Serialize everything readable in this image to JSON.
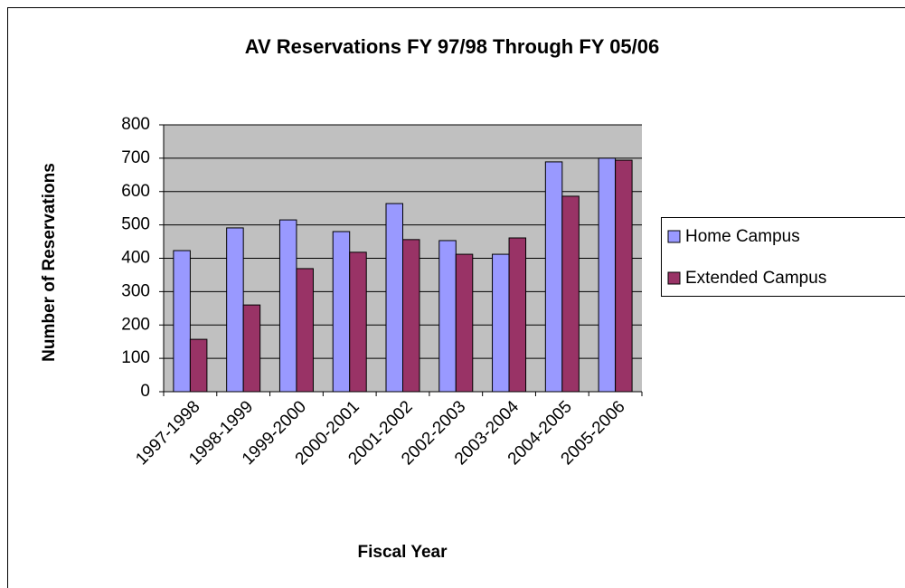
{
  "chart_data": {
    "type": "bar",
    "title": "AV Reservations FY 97/98 Through FY 05/06",
    "x_label": "Fiscal Year",
    "y_label": "Number of Reservations",
    "categories": [
      "1997-1998",
      "1998-1999",
      "1999-2000",
      "2000-2001",
      "2001-2002",
      "2002-2003",
      "2003-2004",
      "2004-2005",
      "2005-2006"
    ],
    "series": [
      {
        "name": "Home Campus",
        "color": "#9999ff",
        "values": [
          423,
          491,
          515,
          480,
          564,
          453,
          412,
          689,
          700
        ]
      },
      {
        "name": "Extended Campus",
        "color": "#993366",
        "values": [
          157,
          260,
          369,
          418,
          456,
          412,
          461,
          586,
          694
        ]
      }
    ],
    "ylim": [
      0,
      800
    ],
    "yticks": [
      0,
      100,
      200,
      300,
      400,
      500,
      600,
      700,
      800
    ],
    "grid": true,
    "legend": "right"
  }
}
